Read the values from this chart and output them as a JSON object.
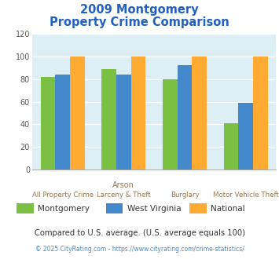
{
  "title_line1": "2009 Montgomery",
  "title_line2": "Property Crime Comparison",
  "title_color": "#2060c0",
  "xlabel_top": [
    "",
    "Arson",
    "",
    ""
  ],
  "xlabel_bottom": [
    "All Property Crime",
    "Larceny & Theft",
    "Burglary",
    "Motor Vehicle Theft"
  ],
  "series": {
    "Montgomery": [
      82,
      89,
      80,
      41
    ],
    "West Virginia": [
      84,
      84,
      92,
      59
    ],
    "National": [
      100,
      100,
      100,
      100
    ]
  },
  "colors": {
    "Montgomery": "#7bc043",
    "West Virginia": "#4488cc",
    "National": "#ffaa33"
  },
  "ylim": [
    0,
    120
  ],
  "yticks": [
    0,
    20,
    40,
    60,
    80,
    100,
    120
  ],
  "plot_bg_color": "#ddeef5",
  "grid_color": "#ffffff",
  "footnote": "Compared to U.S. average. (U.S. average equals 100)",
  "footnote2": "© 2025 CityRating.com - https://www.cityrating.com/crime-statistics/",
  "footnote_color": "#333333",
  "footnote2_color": "#4488cc",
  "xlabel_color": "#997755"
}
